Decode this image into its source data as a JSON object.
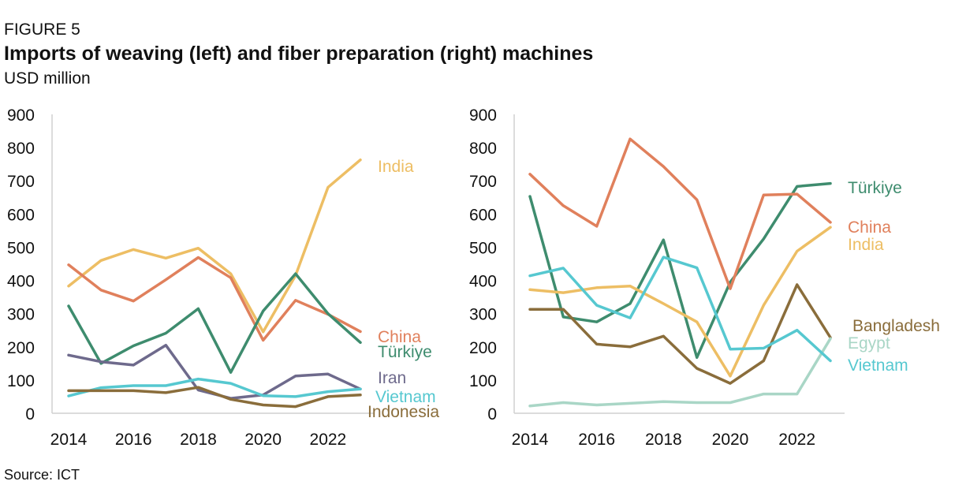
{
  "figure": {
    "label": "FIGURE 5",
    "title": "Imports of weaving (left) and fiber preparation (right) machines",
    "subtitle": "USD million",
    "source": "Source: ICT"
  },
  "colors": {
    "India": "#EDBE64",
    "China": "#E0805C",
    "Türkiye": "#3E8C6E",
    "Iran": "#6E6A8C",
    "Vietnam": "#56C8D0",
    "Indonesia": "#8A6D3B",
    "Bangladesh": "#8A6D3B",
    "Egypt": "#A9D6C6"
  },
  "chart_data": [
    {
      "type": "line",
      "title": "",
      "xlabel": "",
      "ylabel": "",
      "x": [
        2014,
        2015,
        2016,
        2017,
        2018,
        2019,
        2020,
        2021,
        2022,
        2023
      ],
      "xticks": [
        "2014",
        "2016",
        "2018",
        "2020",
        "2022"
      ],
      "yticks": [
        "0",
        "100",
        "200",
        "300",
        "400",
        "500",
        "600",
        "700",
        "800",
        "900"
      ],
      "ylim": [
        0,
        900
      ],
      "grid": false,
      "series": [
        {
          "name": "India",
          "values": [
            383,
            460,
            493,
            467,
            497,
            420,
            245,
            415,
            680,
            763
          ]
        },
        {
          "name": "China",
          "values": [
            447,
            371,
            338,
            402,
            469,
            408,
            220,
            340,
            298,
            246
          ]
        },
        {
          "name": "Türkiye",
          "values": [
            323,
            150,
            203,
            241,
            315,
            123,
            308,
            420,
            300,
            213
          ]
        },
        {
          "name": "Iran",
          "values": [
            175,
            155,
            145,
            205,
            70,
            45,
            55,
            112,
            118,
            73
          ]
        },
        {
          "name": "Vietnam",
          "values": [
            52,
            77,
            83,
            83,
            103,
            90,
            53,
            50,
            65,
            73
          ]
        },
        {
          "name": "Indonesia",
          "values": [
            68,
            68,
            68,
            62,
            78,
            42,
            25,
            20,
            50,
            55
          ]
        }
      ]
    },
    {
      "type": "line",
      "title": "",
      "xlabel": "",
      "ylabel": "",
      "x": [
        2014,
        2015,
        2016,
        2017,
        2018,
        2019,
        2020,
        2021,
        2022,
        2023
      ],
      "xticks": [
        "2014",
        "2016",
        "2018",
        "2020",
        "2022"
      ],
      "yticks": [
        "0",
        "100",
        "200",
        "300",
        "400",
        "500",
        "600",
        "700",
        "800",
        "900"
      ],
      "ylim": [
        0,
        900
      ],
      "grid": false,
      "series": [
        {
          "name": "Türkiye",
          "values": [
            653,
            290,
            275,
            330,
            522,
            168,
            395,
            525,
            683,
            692
          ]
        },
        {
          "name": "China",
          "values": [
            720,
            625,
            563,
            826,
            743,
            643,
            375,
            657,
            660,
            575
          ]
        },
        {
          "name": "India",
          "values": [
            372,
            363,
            378,
            383,
            330,
            275,
            112,
            325,
            488,
            560
          ]
        },
        {
          "name": "Bangladesh",
          "values": [
            313,
            313,
            208,
            200,
            232,
            135,
            90,
            158,
            387,
            228
          ]
        },
        {
          "name": "Egypt",
          "values": [
            22,
            32,
            25,
            30,
            35,
            32,
            32,
            58,
            58,
            225
          ]
        },
        {
          "name": "Vietnam",
          "values": [
            414,
            437,
            325,
            287,
            470,
            438,
            193,
            196,
            250,
            158
          ]
        }
      ]
    }
  ]
}
